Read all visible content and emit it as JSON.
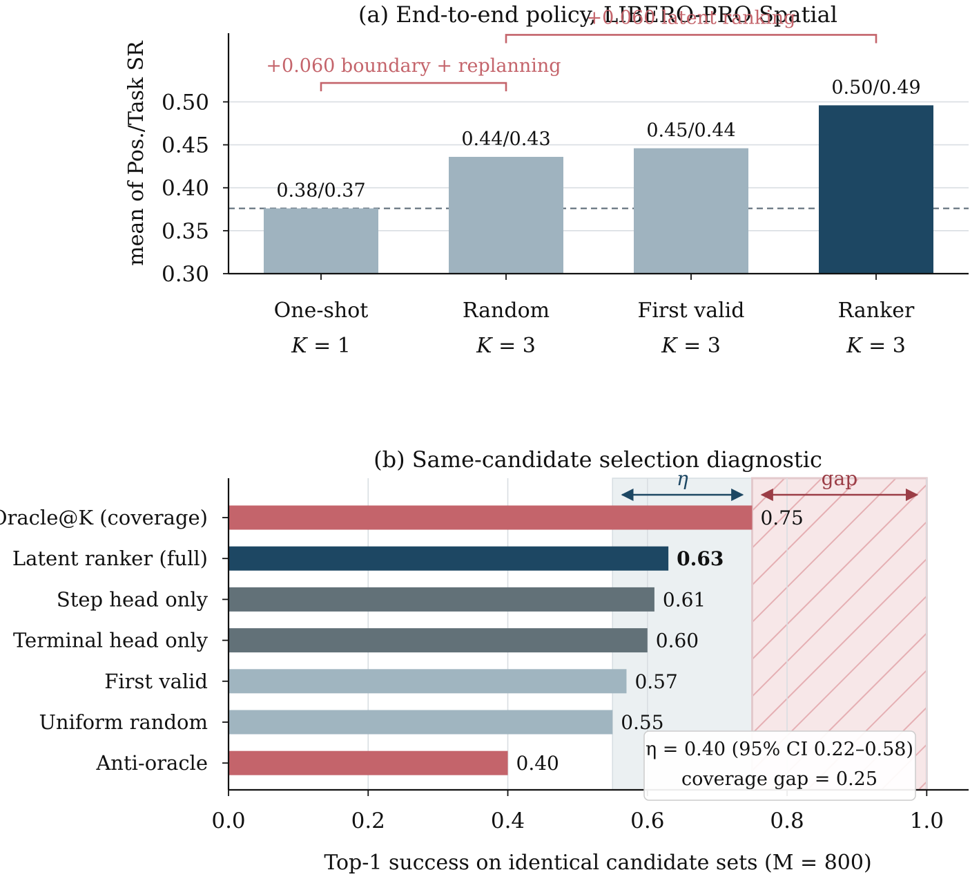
{
  "chart_data": [
    {
      "type": "bar",
      "title": "(a) End-to-end policy, LIBERO-PRO Spatial",
      "ylabel": "mean of Pos./Task SR",
      "xlabel": "",
      "ylim": [
        0.3,
        0.58
      ],
      "yticks": [
        0.3,
        0.35,
        0.4,
        0.45,
        0.5
      ],
      "yticklabels": [
        "0.30",
        "0.35",
        "0.40",
        "0.45",
        "0.50"
      ],
      "grid": "horizontal",
      "categories": [
        "One-shot",
        "Random",
        "First valid",
        "Ranker"
      ],
      "category_sublabels": [
        "K = 1",
        "K = 3",
        "K = 3",
        "K = 3"
      ],
      "values": [
        0.376,
        0.436,
        0.446,
        0.496
      ],
      "value_labels": [
        "0.38/0.37",
        "0.44/0.43",
        "0.45/0.44",
        "0.50/0.49"
      ],
      "bar_colors": [
        "#9fb3bf",
        "#9fb3bf",
        "#9fb3bf",
        "#1d4763"
      ],
      "reference_line": 0.376,
      "annotations": [
        {
          "text": "+0.060  boundary + replanning",
          "from": 0,
          "to": 1,
          "y": 0.522
        },
        {
          "text": "+0.060  latent ranking",
          "from": 1,
          "to": 3,
          "y": 0.578
        }
      ]
    },
    {
      "type": "bar",
      "orientation": "horizontal",
      "title": "(b) Same-candidate selection diagnostic",
      "xlabel": "Top-1 success on identical candidate sets  (M = 800)",
      "ylabel": "",
      "xlim": [
        0.0,
        1.06
      ],
      "xticks": [
        0.0,
        0.2,
        0.4,
        0.6,
        0.8,
        1.0
      ],
      "xticklabels": [
        "0.0",
        "0.2",
        "0.4",
        "0.6",
        "0.8",
        "1.0"
      ],
      "grid": "vertical",
      "categories": [
        "Oracle@K (coverage)",
        "Latent ranker (full)",
        "Step head only",
        "Terminal head only",
        "First valid",
        "Uniform random",
        "Anti-oracle"
      ],
      "values": [
        0.75,
        0.63,
        0.61,
        0.6,
        0.57,
        0.55,
        0.4
      ],
      "value_labels": [
        "0.75",
        "0.63",
        "0.61",
        "0.60",
        "0.57",
        "0.55",
        "0.40"
      ],
      "bold_label_index": 1,
      "bar_colors": [
        "#c4646b",
        "#1d4763",
        "#627178",
        "#627178",
        "#a0b5c0",
        "#a0b5c0",
        "#c4646b"
      ],
      "spans": [
        {
          "name": "η",
          "from": 0.55,
          "to": 0.75,
          "color": "#1d4763"
        },
        {
          "name": "gap",
          "from": 0.75,
          "to": 1.0,
          "color": "#9b3d46"
        }
      ],
      "legend_box": {
        "line1": "η = 0.40  (95% CI 0.22–0.58)",
        "line2": "coverage gap  = 0.25",
        "placement": "bottom-right"
      }
    }
  ]
}
